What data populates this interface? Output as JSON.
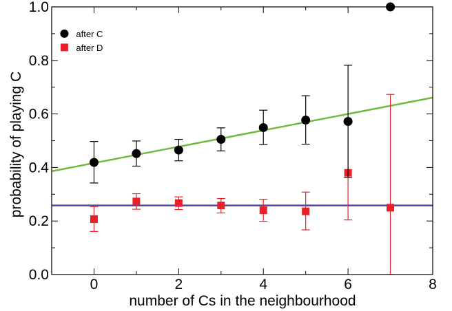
{
  "chart_data": {
    "type": "scatter",
    "xlabel": "number of Cs in the neighbourhood",
    "ylabel": "probability of playing C",
    "xlim": [
      -1,
      8
    ],
    "ylim": [
      0,
      1
    ],
    "xticks": [
      0,
      2,
      4,
      6,
      8
    ],
    "xtick_labels": [
      "0",
      "2",
      "4",
      "6",
      "8"
    ],
    "yticks": [
      0,
      0.2,
      0.4,
      0.6,
      0.8,
      1.0
    ],
    "ytick_labels": [
      "0.0",
      "0.2",
      "0.4",
      "0.6",
      "0.8",
      "1.0"
    ],
    "legend_position": "top-left",
    "grid": false,
    "series": [
      {
        "name": "after C",
        "marker": "circle",
        "color": "#000000",
        "x": [
          0,
          1,
          2,
          3,
          4,
          5,
          6,
          7
        ],
        "y": [
          0.419,
          0.452,
          0.465,
          0.505,
          0.549,
          0.577,
          0.572,
          1.0
        ],
        "err_low": [
          0.342,
          0.405,
          0.425,
          0.462,
          0.486,
          0.487,
          0.363,
          null
        ],
        "err_high": [
          0.497,
          0.499,
          0.505,
          0.548,
          0.614,
          0.668,
          0.782,
          null
        ]
      },
      {
        "name": "after D",
        "marker": "square",
        "color": "#e8202a",
        "x": [
          0,
          1,
          2,
          3,
          4,
          5,
          6,
          7
        ],
        "y": [
          0.207,
          0.273,
          0.267,
          0.258,
          0.24,
          0.236,
          0.38,
          0.25
        ],
        "err_low": [
          0.161,
          0.244,
          0.243,
          0.23,
          0.199,
          0.167,
          0.204,
          0.0
        ],
        "err_high": [
          0.254,
          0.302,
          0.29,
          0.284,
          0.281,
          0.308,
          0.567,
          0.673
        ]
      }
    ],
    "fit_lines": [
      {
        "color": "#6fba3c",
        "x": [
          -1,
          8
        ],
        "y": [
          0.386,
          0.661
        ]
      },
      {
        "color": "#5b3fa8",
        "x": [
          -1,
          8
        ],
        "y": [
          0.258,
          0.258
        ]
      }
    ]
  }
}
